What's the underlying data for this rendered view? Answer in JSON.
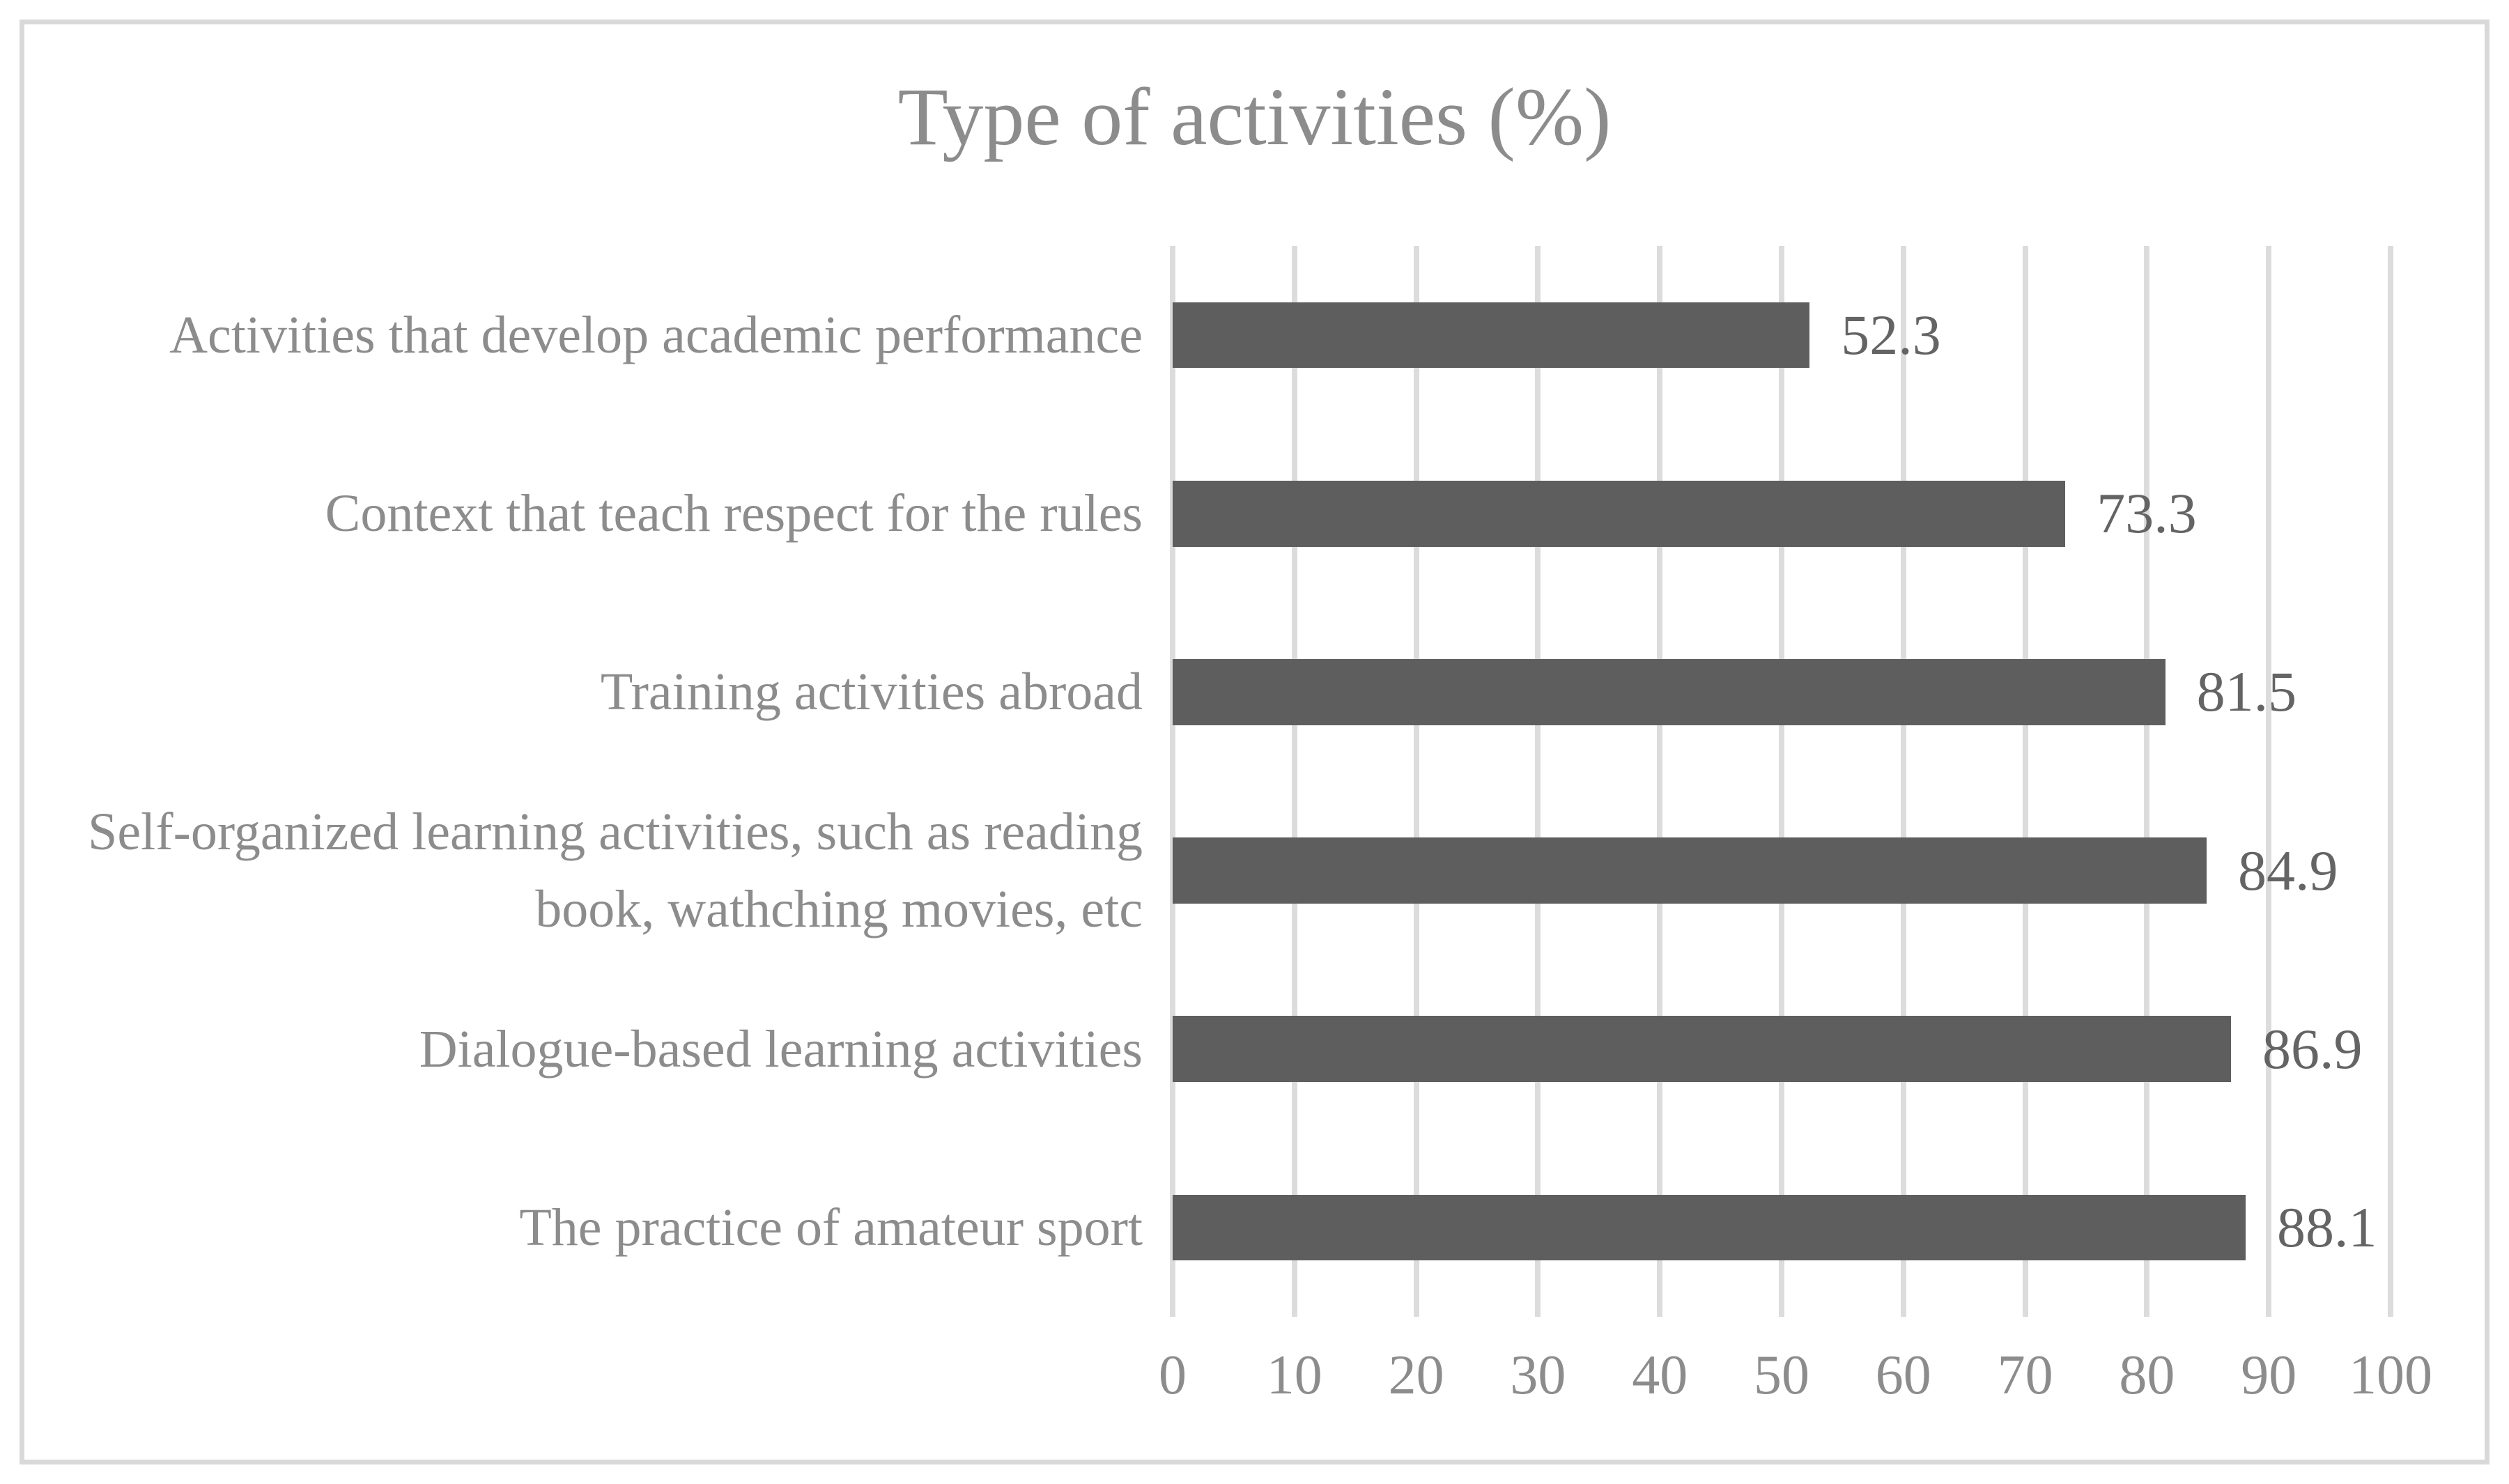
{
  "chart_data": {
    "type": "bar",
    "orientation": "horizontal",
    "title": "Type of activities (%)",
    "categories": [
      "Activities that develop academic performance",
      "Context that teach respect for the rules",
      "Training activities abroad",
      "Self-organized learning activities, such as reading book, wathching movies, etc",
      "Dialogue-based learning activities",
      "The practice of amateur sport"
    ],
    "values": [
      52.3,
      73.3,
      81.5,
      84.9,
      86.9,
      88.1
    ],
    "value_labels": [
      "52.3",
      "73.3",
      "81.5",
      "84.9",
      "86.9",
      "88.1"
    ],
    "xlabel": "",
    "ylabel": "",
    "xlim": [
      0,
      100
    ],
    "x_ticks": [
      0,
      10,
      20,
      30,
      40,
      50,
      60,
      70,
      80,
      90,
      100
    ],
    "grid": "vertical",
    "legend": "none",
    "colors": {
      "bar": "#5e5e5e",
      "gridline": "#dcdcdc",
      "title_text": "#8c8c8c",
      "category_text": "#8c8c8c",
      "tick_text": "#8c8c8c",
      "value_text": "#646464",
      "frame_border": "#d9d9d9",
      "background": "#ffffff"
    }
  }
}
